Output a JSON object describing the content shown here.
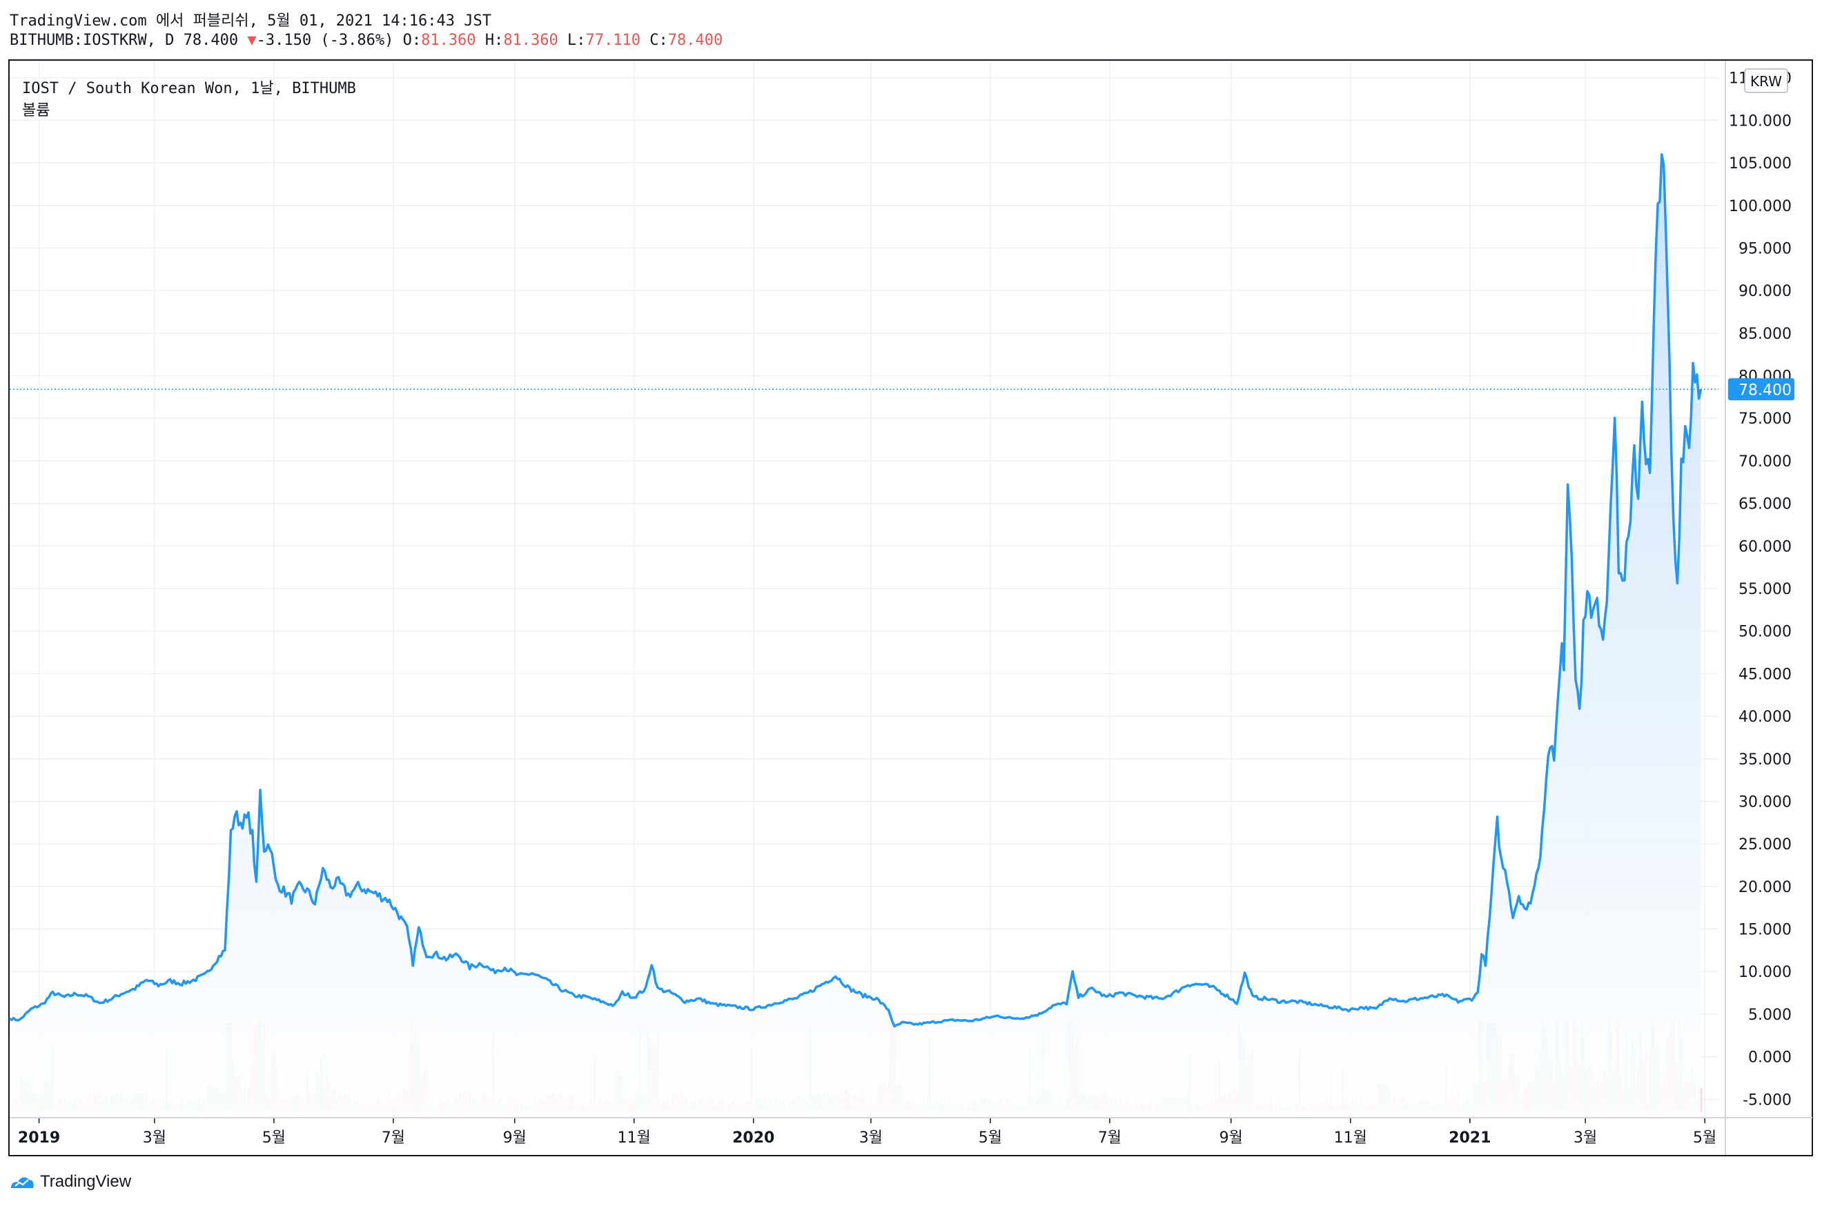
{
  "header": {
    "publish_line": "TradingView.com 에서 퍼블리쉬, 5월 01, 2021 14:16:43 JST",
    "symbol_prefix": "BITHUMB:IOSTKRW, D 78.400",
    "change_arrow": "▼",
    "change_text": "-3.150 (-3.86%)",
    "o_label": "O:",
    "o_value": "81.360",
    "h_label": "H:",
    "h_value": "81.360",
    "l_label": "L:",
    "l_value": "77.110",
    "c_label": "C:",
    "c_value": "78.400"
  },
  "legend": {
    "title": "IOST / South Korean Won, 1날, BITHUMB",
    "volume_label": "볼륨"
  },
  "footer": {
    "brand": "TradingView"
  },
  "colors": {
    "line": "#2196f3",
    "area_top": "#c7e1fa",
    "area_bottom": "#ffffff",
    "grid": "#eef0f3",
    "vol_up": "#26a69a",
    "vol_down": "#ef5350",
    "last_price": "#2196f3"
  },
  "chart_data": {
    "type": "area",
    "y_axis_unit": "KRW",
    "y_ticks": [
      "115.000",
      "110.000",
      "105.000",
      "100.000",
      "95.000",
      "90.000",
      "85.000",
      "80.000",
      "75.000",
      "70.000",
      "65.000",
      "60.000",
      "55.000",
      "50.000",
      "45.000",
      "40.000",
      "35.000",
      "30.000",
      "25.000",
      "20.000",
      "15.000",
      "10.000",
      "5.000",
      "0.000",
      "-5.000"
    ],
    "y_tick_values": [
      115,
      110,
      105,
      100,
      95,
      90,
      85,
      80,
      75,
      70,
      65,
      60,
      55,
      50,
      45,
      40,
      35,
      30,
      25,
      20,
      15,
      10,
      5,
      0,
      -5
    ],
    "ylim": [
      -7,
      117
    ],
    "x_range": [
      "2018-12-17",
      "2021-05-08"
    ],
    "x_ticks": [
      {
        "date": "2019-01-01",
        "label": "2019",
        "bold": true
      },
      {
        "date": "2019-03-01",
        "label": "3월",
        "bold": false
      },
      {
        "date": "2019-05-01",
        "label": "5월",
        "bold": false
      },
      {
        "date": "2019-07-01",
        "label": "7월",
        "bold": false
      },
      {
        "date": "2019-09-01",
        "label": "9월",
        "bold": false
      },
      {
        "date": "2019-11-01",
        "label": "11월",
        "bold": false
      },
      {
        "date": "2020-01-01",
        "label": "2020",
        "bold": true
      },
      {
        "date": "2020-03-01",
        "label": "3월",
        "bold": false
      },
      {
        "date": "2020-05-01",
        "label": "5월",
        "bold": false
      },
      {
        "date": "2020-07-01",
        "label": "7월",
        "bold": false
      },
      {
        "date": "2020-09-01",
        "label": "9월",
        "bold": false
      },
      {
        "date": "2020-11-01",
        "label": "11월",
        "bold": false
      },
      {
        "date": "2021-01-01",
        "label": "2021",
        "bold": true
      },
      {
        "date": "2021-03-01",
        "label": "3월",
        "bold": false
      },
      {
        "date": "2021-05-01",
        "label": "5월",
        "bold": false
      }
    ],
    "last_price": 78.4,
    "last_price_label": "78.400",
    "series": [
      {
        "points": [
          [
            "2018-12-17",
            4.5
          ],
          [
            "2018-12-22",
            4.3
          ],
          [
            "2018-12-28",
            5.6
          ],
          [
            "2019-01-03",
            6.2
          ],
          [
            "2019-01-08",
            7.5
          ],
          [
            "2019-01-14",
            7.0
          ],
          [
            "2019-01-20",
            7.4
          ],
          [
            "2019-01-26",
            7.1
          ],
          [
            "2019-02-01",
            6.3
          ],
          [
            "2019-02-07",
            6.8
          ],
          [
            "2019-02-13",
            7.5
          ],
          [
            "2019-02-19",
            8.0
          ],
          [
            "2019-02-25",
            9.0
          ],
          [
            "2019-03-03",
            8.4
          ],
          [
            "2019-03-09",
            8.9
          ],
          [
            "2019-03-15",
            8.6
          ],
          [
            "2019-03-21",
            9.0
          ],
          [
            "2019-03-27",
            9.6
          ],
          [
            "2019-04-02",
            11.5
          ],
          [
            "2019-04-06",
            12.5
          ],
          [
            "2019-04-09",
            26.0
          ],
          [
            "2019-04-11",
            28.5
          ],
          [
            "2019-04-14",
            27.5
          ],
          [
            "2019-04-18",
            28.0
          ],
          [
            "2019-04-20",
            26.0
          ],
          [
            "2019-04-22",
            20.0
          ],
          [
            "2019-04-24",
            31.0
          ],
          [
            "2019-04-26",
            24.5
          ],
          [
            "2019-04-29",
            25.0
          ],
          [
            "2019-05-02",
            20.5
          ],
          [
            "2019-05-06",
            19.5
          ],
          [
            "2019-05-10",
            18.5
          ],
          [
            "2019-05-14",
            20.0
          ],
          [
            "2019-05-18",
            19.5
          ],
          [
            "2019-05-22",
            18.0
          ],
          [
            "2019-05-26",
            22.0
          ],
          [
            "2019-05-30",
            20.0
          ],
          [
            "2019-06-03",
            20.5
          ],
          [
            "2019-06-08",
            19.0
          ],
          [
            "2019-06-13",
            20.0
          ],
          [
            "2019-06-18",
            19.5
          ],
          [
            "2019-06-23",
            19.0
          ],
          [
            "2019-06-28",
            18.5
          ],
          [
            "2019-07-03",
            17.0
          ],
          [
            "2019-07-08",
            15.0
          ],
          [
            "2019-07-11",
            11.0
          ],
          [
            "2019-07-14",
            15.0
          ],
          [
            "2019-07-18",
            12.0
          ],
          [
            "2019-07-23",
            12.0
          ],
          [
            "2019-07-28",
            11.5
          ],
          [
            "2019-08-03",
            12.0
          ],
          [
            "2019-08-09",
            10.5
          ],
          [
            "2019-08-15",
            11.0
          ],
          [
            "2019-08-21",
            10.0
          ],
          [
            "2019-08-27",
            10.5
          ],
          [
            "2019-09-03",
            9.5
          ],
          [
            "2019-09-10",
            9.8
          ],
          [
            "2019-09-17",
            9.0
          ],
          [
            "2019-09-24",
            8.0
          ],
          [
            "2019-10-01",
            7.2
          ],
          [
            "2019-10-08",
            7.0
          ],
          [
            "2019-10-15",
            6.5
          ],
          [
            "2019-10-22",
            6.0
          ],
          [
            "2019-10-26",
            7.5
          ],
          [
            "2019-11-01",
            7.0
          ],
          [
            "2019-11-07",
            8.0
          ],
          [
            "2019-11-10",
            11.0
          ],
          [
            "2019-11-13",
            8.0
          ],
          [
            "2019-11-20",
            7.5
          ],
          [
            "2019-11-27",
            6.5
          ],
          [
            "2019-12-04",
            6.8
          ],
          [
            "2019-12-11",
            6.2
          ],
          [
            "2019-12-18",
            6.0
          ],
          [
            "2019-12-25",
            5.8
          ],
          [
            "2020-01-01",
            5.6
          ],
          [
            "2020-01-08",
            6.0
          ],
          [
            "2020-01-15",
            6.5
          ],
          [
            "2020-01-22",
            6.8
          ],
          [
            "2020-01-29",
            7.5
          ],
          [
            "2020-02-05",
            8.5
          ],
          [
            "2020-02-12",
            9.5
          ],
          [
            "2020-02-19",
            8.0
          ],
          [
            "2020-02-26",
            7.2
          ],
          [
            "2020-03-04",
            6.8
          ],
          [
            "2020-03-10",
            5.5
          ],
          [
            "2020-03-13",
            3.5
          ],
          [
            "2020-03-17",
            4.0
          ],
          [
            "2020-03-24",
            3.8
          ],
          [
            "2020-03-31",
            4.0
          ],
          [
            "2020-04-07",
            4.2
          ],
          [
            "2020-04-14",
            4.3
          ],
          [
            "2020-04-21",
            4.2
          ],
          [
            "2020-04-28",
            4.5
          ],
          [
            "2020-05-05",
            4.8
          ],
          [
            "2020-05-12",
            4.5
          ],
          [
            "2020-05-19",
            4.6
          ],
          [
            "2020-05-26",
            5.0
          ],
          [
            "2020-06-02",
            6.0
          ],
          [
            "2020-06-09",
            6.3
          ],
          [
            "2020-06-12",
            9.8
          ],
          [
            "2020-06-15",
            7.0
          ],
          [
            "2020-06-22",
            8.0
          ],
          [
            "2020-06-29",
            7.0
          ],
          [
            "2020-07-06",
            7.5
          ],
          [
            "2020-07-13",
            7.2
          ],
          [
            "2020-07-20",
            7.0
          ],
          [
            "2020-07-27",
            6.8
          ],
          [
            "2020-08-03",
            7.5
          ],
          [
            "2020-08-10",
            8.5
          ],
          [
            "2020-08-17",
            8.5
          ],
          [
            "2020-08-24",
            8.0
          ],
          [
            "2020-08-31",
            7.0
          ],
          [
            "2020-09-04",
            6.3
          ],
          [
            "2020-09-08",
            9.8
          ],
          [
            "2020-09-12",
            7.0
          ],
          [
            "2020-09-19",
            6.8
          ],
          [
            "2020-09-26",
            6.5
          ],
          [
            "2020-10-03",
            6.5
          ],
          [
            "2020-10-10",
            6.3
          ],
          [
            "2020-10-17",
            6.0
          ],
          [
            "2020-10-24",
            5.8
          ],
          [
            "2020-10-31",
            5.5
          ],
          [
            "2020-11-07",
            5.8
          ],
          [
            "2020-11-14",
            5.6
          ],
          [
            "2020-11-21",
            7.0
          ],
          [
            "2020-11-28",
            6.5
          ],
          [
            "2020-12-05",
            6.8
          ],
          [
            "2020-12-12",
            7.0
          ],
          [
            "2020-12-19",
            7.2
          ],
          [
            "2020-12-26",
            6.5
          ],
          [
            "2021-01-02",
            6.8
          ],
          [
            "2021-01-05",
            7.5
          ],
          [
            "2021-01-07",
            12.0
          ],
          [
            "2021-01-09",
            11.0
          ],
          [
            "2021-01-11",
            16.0
          ],
          [
            "2021-01-13",
            22.0
          ],
          [
            "2021-01-15",
            27.5
          ],
          [
            "2021-01-17",
            23.0
          ],
          [
            "2021-01-20",
            21.0
          ],
          [
            "2021-01-23",
            16.5
          ],
          [
            "2021-01-26",
            19.0
          ],
          [
            "2021-01-30",
            17.0
          ],
          [
            "2021-02-03",
            20.0
          ],
          [
            "2021-02-06",
            24.0
          ],
          [
            "2021-02-09",
            33.0
          ],
          [
            "2021-02-11",
            37.0
          ],
          [
            "2021-02-13",
            34.0
          ],
          [
            "2021-02-15",
            43.0
          ],
          [
            "2021-02-17",
            48.0
          ],
          [
            "2021-02-18",
            46.0
          ],
          [
            "2021-02-20",
            68.0
          ],
          [
            "2021-02-22",
            60.0
          ],
          [
            "2021-02-24",
            45.0
          ],
          [
            "2021-02-26",
            40.5
          ],
          [
            "2021-02-28",
            50.0
          ],
          [
            "2021-03-02",
            56.0
          ],
          [
            "2021-03-04",
            51.0
          ],
          [
            "2021-03-06",
            53.0
          ],
          [
            "2021-03-08",
            52.0
          ],
          [
            "2021-03-10",
            50.0
          ],
          [
            "2021-03-12",
            54.0
          ],
          [
            "2021-03-14",
            67.0
          ],
          [
            "2021-03-16",
            75.0
          ],
          [
            "2021-03-18",
            58.0
          ],
          [
            "2021-03-20",
            55.5
          ],
          [
            "2021-03-22",
            59.0
          ],
          [
            "2021-03-24",
            62.0
          ],
          [
            "2021-03-26",
            71.0
          ],
          [
            "2021-03-28",
            66.0
          ],
          [
            "2021-03-30",
            78.0
          ],
          [
            "2021-04-01",
            70.0
          ],
          [
            "2021-04-03",
            68.0
          ],
          [
            "2021-04-05",
            85.0
          ],
          [
            "2021-04-07",
            100.0
          ],
          [
            "2021-04-09",
            107.0
          ],
          [
            "2021-04-11",
            97.0
          ],
          [
            "2021-04-13",
            80.0
          ],
          [
            "2021-04-15",
            62.0
          ],
          [
            "2021-04-17",
            55.5
          ],
          [
            "2021-04-19",
            70.0
          ],
          [
            "2021-04-21",
            74.0
          ],
          [
            "2021-04-23",
            72.0
          ],
          [
            "2021-04-25",
            81.5
          ],
          [
            "2021-04-27",
            80.0
          ],
          [
            "2021-04-29",
            78.4
          ]
        ]
      }
    ]
  }
}
